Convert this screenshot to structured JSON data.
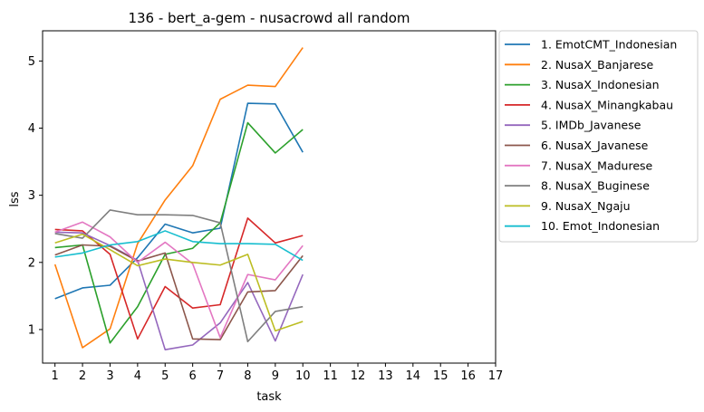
{
  "chart_data": {
    "type": "line",
    "title": "136 - bert_a-gem - nusacrowd all random",
    "xlabel": "task",
    "ylabel": "lss",
    "xlim": [
      0.55,
      17.0
    ],
    "ylim": [
      0.5,
      5.45
    ],
    "xticks": [
      1,
      2,
      3,
      4,
      5,
      6,
      7,
      8,
      9,
      10,
      11,
      12,
      13,
      14,
      15,
      16,
      17
    ],
    "yticks": [
      1,
      2,
      3,
      4,
      5
    ],
    "grid": false,
    "legend_position": "outside-right",
    "x": [
      1,
      2,
      3,
      4,
      5,
      6,
      7,
      8,
      9,
      10
    ],
    "series": [
      {
        "name": "1. EmotCMT_Indonesian",
        "color": "#1f77b4",
        "values": [
          1.46,
          1.62,
          1.66,
          2.07,
          2.57,
          2.44,
          2.51,
          4.37,
          4.36,
          3.64
        ]
      },
      {
        "name": "2. NusaX_Banjarese",
        "color": "#ff7f0e",
        "values": [
          1.97,
          0.73,
          1.01,
          2.28,
          2.93,
          3.44,
          4.43,
          4.64,
          4.62,
          5.2
        ]
      },
      {
        "name": "3. NusaX_Indonesian",
        "color": "#2ca02c",
        "values": [
          2.22,
          2.26,
          0.8,
          1.34,
          2.12,
          2.21,
          2.59,
          4.08,
          3.63,
          3.98
        ]
      },
      {
        "name": "4. NusaX_Minangkabau",
        "color": "#d62728",
        "values": [
          2.49,
          2.47,
          2.12,
          0.86,
          1.64,
          1.32,
          1.37,
          2.66,
          2.29,
          2.4
        ]
      },
      {
        "name": "5. IMDb_Javanese",
        "color": "#9467bd",
        "values": [
          2.45,
          2.44,
          2.25,
          2.03,
          0.7,
          0.77,
          1.1,
          1.7,
          0.83,
          1.82
        ]
      },
      {
        "name": "6. NusaX_Javanese",
        "color": "#8c564b",
        "values": [
          2.11,
          2.26,
          2.24,
          2.02,
          2.14,
          0.86,
          0.85,
          1.56,
          1.58,
          2.1
        ]
      },
      {
        "name": "7. NusaX_Madurese",
        "color": "#e377c2",
        "values": [
          2.45,
          2.6,
          2.38,
          2.0,
          2.3,
          1.98,
          0.88,
          1.82,
          1.74,
          2.25
        ]
      },
      {
        "name": "8. NusaX_Buginese",
        "color": "#7f7f7f",
        "values": [
          2.43,
          2.36,
          2.78,
          2.71,
          2.71,
          2.7,
          2.59,
          0.82,
          1.27,
          1.34
        ]
      },
      {
        "name": "9. NusaX_Ngaju",
        "color": "#bcbd22",
        "values": [
          2.29,
          2.42,
          2.19,
          1.95,
          2.05,
          2.0,
          1.96,
          2.12,
          0.98,
          1.12
        ]
      },
      {
        "name": "10. Emot_Indonesian",
        "color": "#17becf",
        "values": [
          2.08,
          2.14,
          2.26,
          2.31,
          2.47,
          2.31,
          2.28,
          2.28,
          2.27,
          2.03
        ]
      }
    ]
  }
}
